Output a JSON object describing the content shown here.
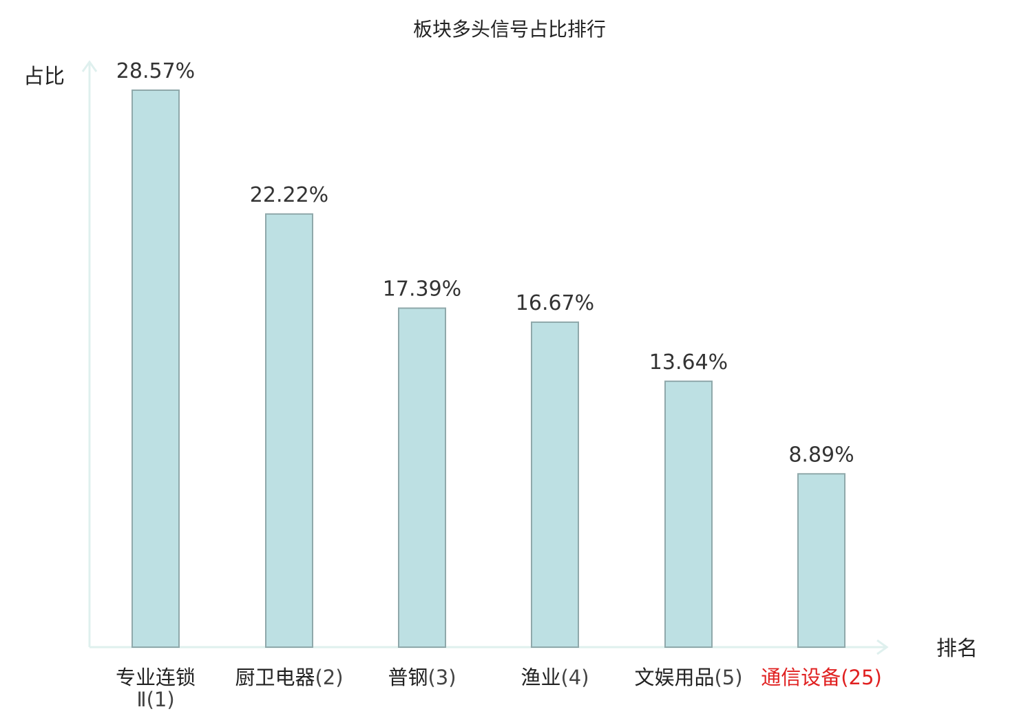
{
  "chart_data": {
    "type": "bar",
    "title": "板块多头信号占比排行",
    "ylabel": "占比",
    "xlabel": "排名",
    "ylim": [
      0,
      30
    ],
    "grid": false,
    "colors": {
      "bar_fill": "#bde0e3",
      "bar_stroke": "#8fa8aa",
      "axis": "#dff0ee",
      "highlight": "#e02020"
    },
    "bars": [
      {
        "category": "专业连锁",
        "category_line2": "Ⅱ",
        "rank_text": "(1)",
        "value": 28.57,
        "value_label": "28.57%",
        "highlight": false
      },
      {
        "category": "厨卫电器",
        "rank_text": "(2)",
        "value": 22.22,
        "value_label": "22.22%",
        "highlight": false
      },
      {
        "category": "普钢",
        "rank_text": "(3)",
        "value": 17.39,
        "value_label": "17.39%",
        "highlight": false
      },
      {
        "category": "渔业",
        "rank_text": "(4)",
        "value": 16.67,
        "value_label": "16.67%",
        "highlight": false
      },
      {
        "category": "文娱用品",
        "rank_text": "(5)",
        "value": 13.64,
        "value_label": "13.64%",
        "highlight": false
      },
      {
        "category": "通信设备",
        "rank_text": "(25)",
        "value": 8.89,
        "value_label": "8.89%",
        "highlight": true
      }
    ]
  }
}
